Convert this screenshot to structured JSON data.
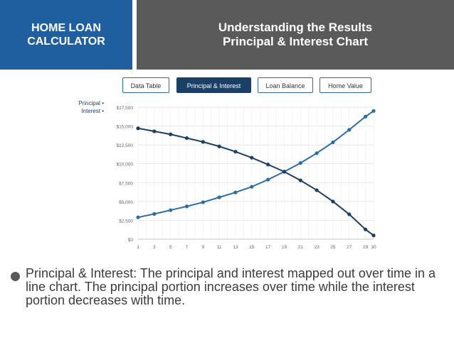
{
  "header": {
    "left_line1": "HOME LOAN",
    "left_line2": "CALCULATOR",
    "right_line1": "Understanding the Results",
    "right_line2": "Principal & Interest Chart",
    "left_color": "#1f5fa0",
    "right_color": "#5a5a5a"
  },
  "tabs": [
    {
      "label": "Data Table",
      "active": false
    },
    {
      "label": "Principal & Interest",
      "active": true
    },
    {
      "label": "Loan Balance",
      "active": false
    },
    {
      "label": "Home Value",
      "active": false
    }
  ],
  "legend": {
    "principal": "Principal",
    "interest": "Interest",
    "dot": "•"
  },
  "chart_data": {
    "type": "line",
    "x": [
      1,
      2,
      3,
      4,
      5,
      6,
      7,
      8,
      9,
      10,
      11,
      12,
      13,
      14,
      15,
      16,
      17,
      18,
      19,
      20,
      21,
      22,
      23,
      24,
      25,
      26,
      27,
      28,
      29,
      30
    ],
    "x_ticks": [
      1,
      3,
      5,
      7,
      9,
      11,
      13,
      15,
      17,
      19,
      21,
      23,
      25,
      27,
      29,
      30
    ],
    "y_ticks": [
      "$0",
      "$2,500",
      "$5,000",
      "$7,500",
      "$10,000",
      "$12,500",
      "$15,000",
      "$17,500"
    ],
    "ylim": [
      0,
      17500
    ],
    "xlim": [
      1,
      30
    ],
    "grid": true,
    "legend_position": "left",
    "series": [
      {
        "name": "Principal",
        "color": "#2b6ea3",
        "x": [
          1,
          3,
          5,
          7,
          9,
          11,
          13,
          15,
          17,
          19,
          21,
          23,
          25,
          27,
          29,
          30
        ],
        "values": [
          2900,
          3350,
          3850,
          4350,
          4900,
          5550,
          6200,
          6950,
          7900,
          8950,
          10100,
          11400,
          12850,
          14500,
          16250,
          17000
        ]
      },
      {
        "name": "Interest",
        "color": "#1b3f66",
        "x": [
          1,
          3,
          5,
          7,
          9,
          11,
          13,
          15,
          17,
          19,
          21,
          23,
          25,
          27,
          29,
          30
        ],
        "values": [
          14700,
          14300,
          13900,
          13400,
          12900,
          12300,
          11600,
          10800,
          9900,
          8950,
          7800,
          6500,
          5000,
          3300,
          1300,
          500
        ]
      }
    ]
  },
  "bullet": {
    "text": "Principal & Interest:  The principal and interest mapped out over time in a line chart.  The principal portion increases over time while the interest portion decreases with time."
  }
}
